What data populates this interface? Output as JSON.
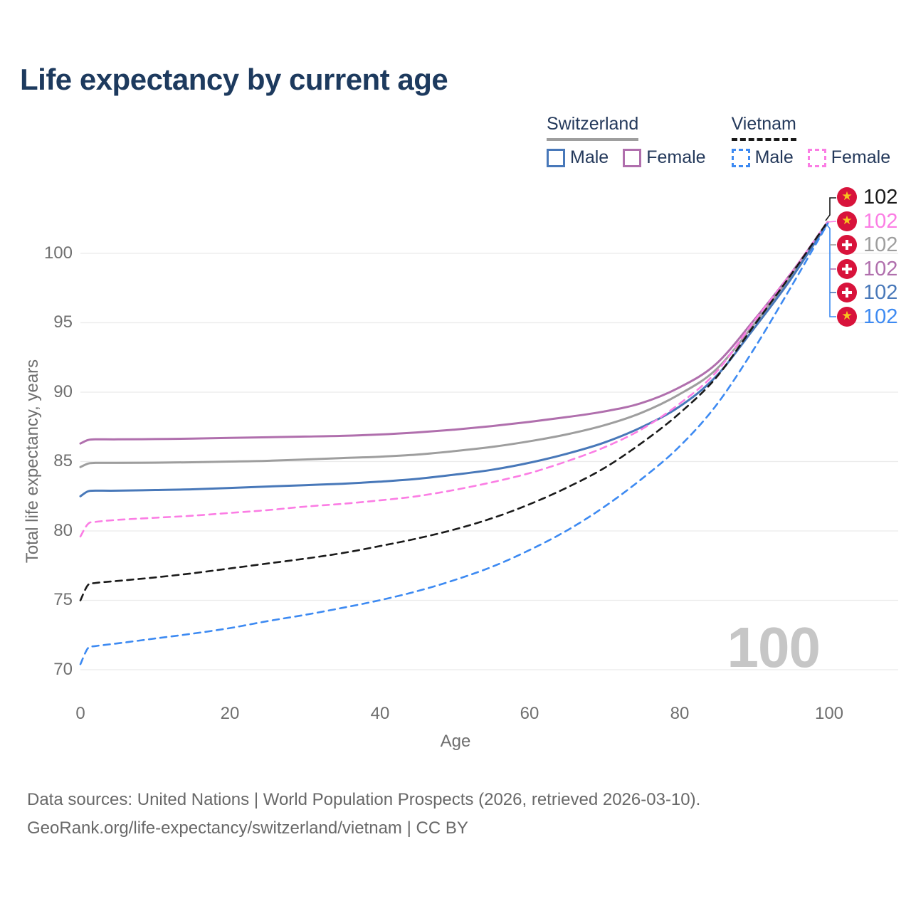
{
  "title": "Life expectancy by current age",
  "legend": {
    "groups": [
      {
        "name": "Switzerland",
        "style": "solid",
        "items": [
          {
            "label": "Male"
          },
          {
            "label": "Female"
          }
        ]
      },
      {
        "name": "Vietnam",
        "style": "dashed",
        "items": [
          {
            "label": "Male"
          },
          {
            "label": "Female"
          }
        ]
      }
    ]
  },
  "colors": {
    "title_navy": "#1d3a5e",
    "legend_text": "#24395b",
    "switzerland_underline": "#9e9e9e",
    "vietnam_underline": "#1a1a1a",
    "flag_red": "#d8133b",
    "star_yellow": "#f7c51e",
    "gridline": "#ebebeb",
    "axis_text": "#6f6f6f",
    "watermark_gray": "#c6c6c6",
    "footer_gray": "#686868"
  },
  "icons": {
    "vietnam_flag": "yellow-star-in-red-circle",
    "switzerland_flag": "white-cross-in-red-circle"
  },
  "end_labels": [
    {
      "value": "102",
      "flag": "vietnam",
      "series": "Vietnam Both sexes",
      "color": "#1a1a1a"
    },
    {
      "value": "102",
      "flag": "vietnam",
      "series": "Vietnam Female",
      "color": "#fb7de4"
    },
    {
      "value": "102",
      "flag": "switzerland",
      "series": "Switzerland Both sexes",
      "color": "#9e9e9e"
    },
    {
      "value": "102",
      "flag": "switzerland",
      "series": "Switzerland Female",
      "color": "#b06fad"
    },
    {
      "value": "102",
      "flag": "switzerland",
      "series": "Switzerland Male",
      "color": "#4878b9"
    },
    {
      "value": "102",
      "flag": "vietnam",
      "series": "Vietnam Male",
      "color": "#3d8af2"
    }
  ],
  "watermark": "100",
  "axes": {
    "x": {
      "title": "Age",
      "ticks": [
        "0",
        "20",
        "40",
        "60",
        "80",
        "100"
      ]
    },
    "y": {
      "title": "Total life expectancy, years",
      "ticks": [
        "100",
        "95",
        "90",
        "85",
        "80",
        "75",
        "70"
      ]
    }
  },
  "chart_data": {
    "type": "line",
    "title": "Life expectancy by current age",
    "xlabel": "Age",
    "ylabel": "Total life expectancy, years",
    "xlim": [
      0,
      100
    ],
    "ylim": [
      70,
      102.5
    ],
    "grid": "horizontal-only",
    "legend_position": "top-right",
    "x": [
      0,
      1,
      2,
      5,
      10,
      15,
      20,
      25,
      30,
      35,
      40,
      45,
      50,
      55,
      60,
      65,
      70,
      75,
      80,
      85,
      90,
      95,
      100
    ],
    "series": [
      {
        "name": "Switzerland Female",
        "country": "Switzerland",
        "sex": "Female",
        "color": "#b06fad",
        "dash": false,
        "values": [
          86.3,
          86.55,
          86.6,
          86.6,
          86.62,
          86.65,
          86.7,
          86.75,
          86.8,
          86.85,
          86.95,
          87.1,
          87.3,
          87.55,
          87.85,
          88.2,
          88.6,
          89.2,
          90.3,
          92.0,
          95.1,
          98.5,
          102.25
        ]
      },
      {
        "name": "Switzerland Both sexes",
        "country": "Switzerland",
        "sex": "Both",
        "color": "#9e9e9e",
        "dash": false,
        "values": [
          84.6,
          84.85,
          84.9,
          84.9,
          84.92,
          84.95,
          85.0,
          85.05,
          85.15,
          85.25,
          85.35,
          85.5,
          85.75,
          86.05,
          86.45,
          86.95,
          87.6,
          88.5,
          89.8,
          91.6,
          94.8,
          98.3,
          102.2
        ]
      },
      {
        "name": "Switzerland Male",
        "country": "Switzerland",
        "sex": "Male",
        "color": "#4878b9",
        "dash": false,
        "values": [
          82.5,
          82.85,
          82.9,
          82.9,
          82.95,
          83.0,
          83.1,
          83.2,
          83.3,
          83.4,
          83.55,
          83.75,
          84.05,
          84.4,
          84.9,
          85.55,
          86.35,
          87.45,
          88.9,
          91.1,
          94.5,
          98.1,
          102.2
        ]
      },
      {
        "name": "Vietnam Female",
        "country": "Vietnam",
        "sex": "Female",
        "color": "#fb7de4",
        "dash": true,
        "values": [
          79.6,
          80.5,
          80.65,
          80.8,
          80.95,
          81.1,
          81.3,
          81.5,
          81.75,
          81.95,
          82.2,
          82.5,
          82.95,
          83.5,
          84.15,
          85.0,
          86.0,
          87.3,
          89.1,
          91.4,
          95.0,
          98.5,
          102.3
        ]
      },
      {
        "name": "Vietnam Both sexes",
        "country": "Vietnam",
        "sex": "Both",
        "color": "#1a1a1a",
        "dash": true,
        "values": [
          75.0,
          76.1,
          76.25,
          76.4,
          76.65,
          76.95,
          77.3,
          77.65,
          78.0,
          78.4,
          78.9,
          79.45,
          80.1,
          80.9,
          81.9,
          83.1,
          84.5,
          86.3,
          88.4,
          91.0,
          94.7,
          98.4,
          102.3
        ]
      },
      {
        "name": "Vietnam Male",
        "country": "Vietnam",
        "sex": "Male",
        "color": "#3d8af2",
        "dash": true,
        "values": [
          70.4,
          71.55,
          71.7,
          71.9,
          72.25,
          72.6,
          73.0,
          73.5,
          73.95,
          74.45,
          75.0,
          75.65,
          76.45,
          77.4,
          78.6,
          80.0,
          81.7,
          83.7,
          86.0,
          89.0,
          93.0,
          97.5,
          102.15
        ]
      }
    ]
  },
  "footer": {
    "line1": "Data sources: United Nations | World Population Prospects (2026, retrieved 2026-03-10).",
    "line2": "GeoRank.org/life-expectancy/switzerland/vietnam | CC BY"
  }
}
